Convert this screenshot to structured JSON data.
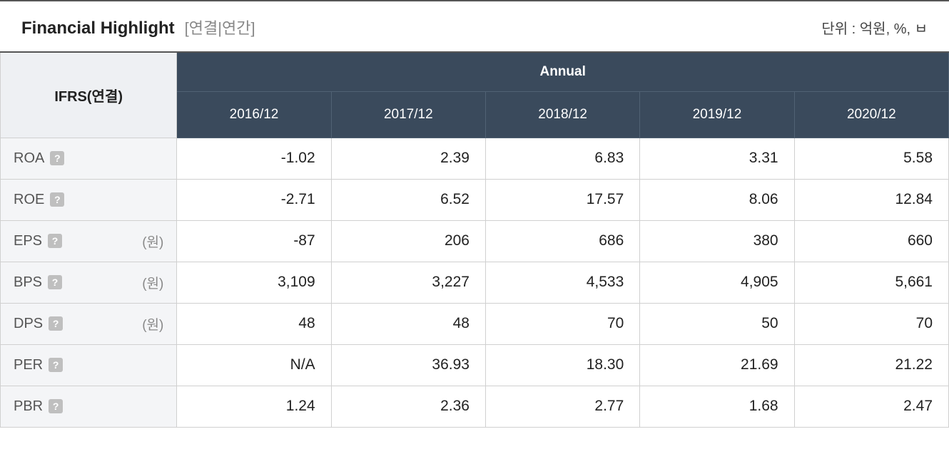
{
  "header": {
    "title": "Financial Highlight",
    "subtitle": "[연결|연간]",
    "unit_text": "단위 : 억원, %, ㅂ"
  },
  "table": {
    "rowhead_title": "IFRS(연결)",
    "period_group_label": "Annual",
    "periods": [
      "2016/12",
      "2017/12",
      "2018/12",
      "2019/12",
      "2020/12"
    ],
    "metrics": [
      {
        "name": "ROA",
        "unit": ""
      },
      {
        "name": "ROE",
        "unit": ""
      },
      {
        "name": "EPS",
        "unit": "(원)"
      },
      {
        "name": "BPS",
        "unit": "(원)"
      },
      {
        "name": "DPS",
        "unit": "(원)"
      },
      {
        "name": "PER",
        "unit": ""
      },
      {
        "name": "PBR",
        "unit": ""
      }
    ],
    "values": [
      [
        "-1.02",
        "2.39",
        "6.83",
        "3.31",
        "5.58"
      ],
      [
        "-2.71",
        "6.52",
        "17.57",
        "8.06",
        "12.84"
      ],
      [
        "-87",
        "206",
        "686",
        "380",
        "660"
      ],
      [
        "3,109",
        "3,227",
        "4,533",
        "4,905",
        "5,661"
      ],
      [
        "48",
        "48",
        "70",
        "50",
        "70"
      ],
      [
        "N/A",
        "36.93",
        "18.30",
        "21.69",
        "21.22"
      ],
      [
        "1.24",
        "2.36",
        "2.77",
        "1.68",
        "2.47"
      ]
    ]
  },
  "style": {
    "header_bg": "#3a4a5c",
    "header_fg": "#ffffff",
    "rowhead_bg": "#f4f5f7",
    "border_color": "#d0d0d0",
    "negative_color": "#d60000",
    "text_color": "#222222",
    "title_fontsize": 24,
    "cell_fontsize": 21
  }
}
